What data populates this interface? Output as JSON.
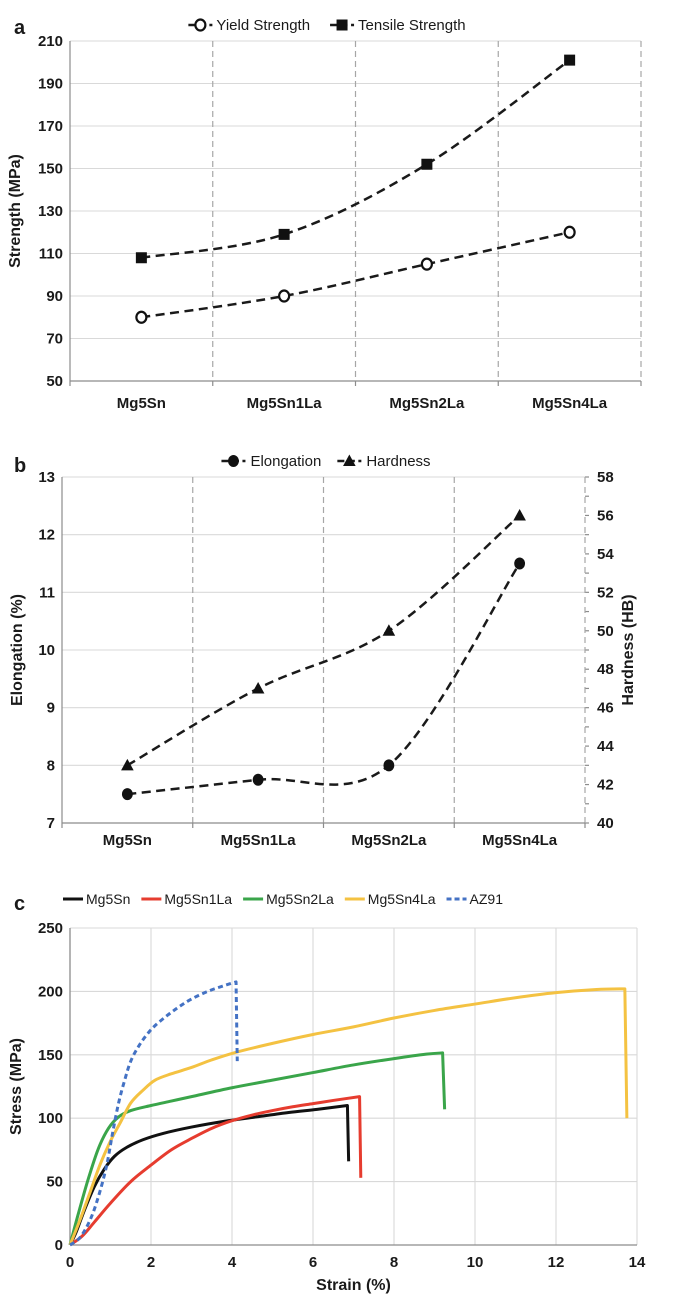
{
  "figure": {
    "panels": [
      {
        "label": "a"
      },
      {
        "label": "b"
      },
      {
        "label": "c"
      }
    ]
  },
  "chart_data": [
    {
      "panel": "a",
      "type": "line",
      "categories": [
        "Mg5Sn",
        "Mg5Sn1La",
        "Mg5Sn2La",
        "Mg5Sn4La"
      ],
      "ylabel": "Strength (MPa)",
      "ylim": [
        50,
        210
      ],
      "yticks": [
        50,
        70,
        90,
        110,
        130,
        150,
        170,
        190,
        210
      ],
      "legend_position": "top",
      "grid": {
        "horizontal": true,
        "vertical_dashed": true
      },
      "line_color": "#1a1a1a",
      "series": [
        {
          "name": "Yield Strength",
          "marker": "open-circle",
          "values": [
            80,
            90,
            105,
            120
          ]
        },
        {
          "name": "Tensile Strength",
          "marker": "filled-square",
          "values": [
            108,
            119,
            152,
            201
          ]
        }
      ]
    },
    {
      "panel": "b",
      "type": "line",
      "categories": [
        "Mg5Sn",
        "Mg5Sn1La",
        "Mg5Sn2La",
        "Mg5Sn4La"
      ],
      "ylabel_left": "Elongation (%)",
      "ylim_left": [
        7,
        13
      ],
      "yticks_left": [
        7,
        8,
        9,
        10,
        11,
        12,
        13
      ],
      "ylabel_right": "Hardness (HB)",
      "ylim_right": [
        40,
        58
      ],
      "yticks_right": [
        40,
        42,
        44,
        46,
        48,
        50,
        52,
        54,
        56,
        58
      ],
      "legend_position": "top",
      "grid": {
        "horizontal": true,
        "vertical_dashed": true
      },
      "line_color": "#1a1a1a",
      "series": [
        {
          "name": "Elongation",
          "marker": "filled-circle",
          "axis": "left",
          "values": [
            7.5,
            7.75,
            8.0,
            11.5
          ]
        },
        {
          "name": "Hardness",
          "marker": "filled-triangle",
          "axis": "right",
          "values": [
            43,
            47,
            50,
            56
          ]
        }
      ]
    },
    {
      "panel": "c",
      "type": "line",
      "xlabel": "Strain (%)",
      "ylabel": "Stress (MPa)",
      "xlim": [
        0,
        14
      ],
      "xticks": [
        0,
        2,
        4,
        6,
        8,
        10,
        12,
        14
      ],
      "ylim": [
        0,
        250
      ],
      "yticks": [
        0,
        50,
        100,
        150,
        200,
        250
      ],
      "legend_position": "top",
      "grid": {
        "horizontal": true,
        "vertical": true
      },
      "series": [
        {
          "name": "Mg5Sn",
          "color": "#111111",
          "dash": false,
          "points": [
            [
              0,
              0
            ],
            [
              0.15,
              10
            ],
            [
              0.35,
              27
            ],
            [
              0.6,
              46
            ],
            [
              0.85,
              60
            ],
            [
              1.1,
              70
            ],
            [
              1.4,
              77
            ],
            [
              1.8,
              83
            ],
            [
              2.3,
              88
            ],
            [
              3,
              93
            ],
            [
              3.8,
              97.5
            ],
            [
              4.6,
              101
            ],
            [
              5.4,
              104.5
            ],
            [
              6.1,
              107
            ],
            [
              6.85,
              110
            ],
            [
              6.88,
              66
            ]
          ]
        },
        {
          "name": "Mg5Sn1La",
          "color": "#e63c2f",
          "dash": false,
          "points": [
            [
              0,
              0
            ],
            [
              0.3,
              7
            ],
            [
              0.6,
              18
            ],
            [
              1,
              33
            ],
            [
              1.5,
              50
            ],
            [
              2,
              63
            ],
            [
              2.5,
              75
            ],
            [
              3,
              84
            ],
            [
              3.5,
              92
            ],
            [
              4,
              98
            ],
            [
              4.5,
              102.5
            ],
            [
              5,
              106
            ],
            [
              5.5,
              109
            ],
            [
              6,
              111.5
            ],
            [
              6.5,
              114
            ],
            [
              7.15,
              117
            ],
            [
              7.18,
              53
            ]
          ]
        },
        {
          "name": "Mg5Sn2La",
          "color": "#3aa54a",
          "dash": false,
          "points": [
            [
              0,
              0
            ],
            [
              0.2,
              24
            ],
            [
              0.45,
              52
            ],
            [
              0.7,
              76
            ],
            [
              0.95,
              92
            ],
            [
              1.2,
              101
            ],
            [
              1.5,
              106
            ],
            [
              2,
              110
            ],
            [
              2.5,
              113.5
            ],
            [
              3,
              117
            ],
            [
              4,
              124
            ],
            [
              5,
              130
            ],
            [
              6,
              136
            ],
            [
              7,
              142
            ],
            [
              8,
              147
            ],
            [
              8.8,
              150.5
            ],
            [
              9.2,
              151.5
            ],
            [
              9.25,
              107
            ]
          ]
        },
        {
          "name": "Mg5Sn4La",
          "color": "#f4c242",
          "dash": false,
          "points": [
            [
              0,
              0
            ],
            [
              0.25,
              20
            ],
            [
              0.5,
              42
            ],
            [
              0.75,
              64
            ],
            [
              1,
              82
            ],
            [
              1.25,
              97
            ],
            [
              1.5,
              112
            ],
            [
              1.8,
              122
            ],
            [
              2.1,
              130
            ],
            [
              2.5,
              135
            ],
            [
              3,
              140
            ],
            [
              3.5,
              146
            ],
            [
              4.1,
              152
            ],
            [
              5,
              159
            ],
            [
              6,
              166
            ],
            [
              7,
              172
            ],
            [
              8,
              179
            ],
            [
              9,
              185
            ],
            [
              10,
              190
            ],
            [
              11,
              195
            ],
            [
              12,
              199
            ],
            [
              13,
              201.5
            ],
            [
              13.7,
              202
            ],
            [
              13.75,
              100
            ]
          ]
        },
        {
          "name": "AZ91",
          "color": "#4472c4",
          "dash": true,
          "points": [
            [
              0,
              0
            ],
            [
              0.25,
              6
            ],
            [
              0.5,
              20
            ],
            [
              0.7,
              38
            ],
            [
              0.9,
              62
            ],
            [
              1.05,
              88
            ],
            [
              1.2,
              112
            ],
            [
              1.35,
              130
            ],
            [
              1.5,
              145
            ],
            [
              1.7,
              157
            ],
            [
              1.9,
              166
            ],
            [
              2.1,
              173
            ],
            [
              2.4,
              181
            ],
            [
              2.7,
              188
            ],
            [
              3,
              194
            ],
            [
              3.4,
              200
            ],
            [
              3.8,
              204.5
            ],
            [
              4.1,
              207.5
            ],
            [
              4.13,
              145
            ]
          ]
        }
      ]
    }
  ]
}
